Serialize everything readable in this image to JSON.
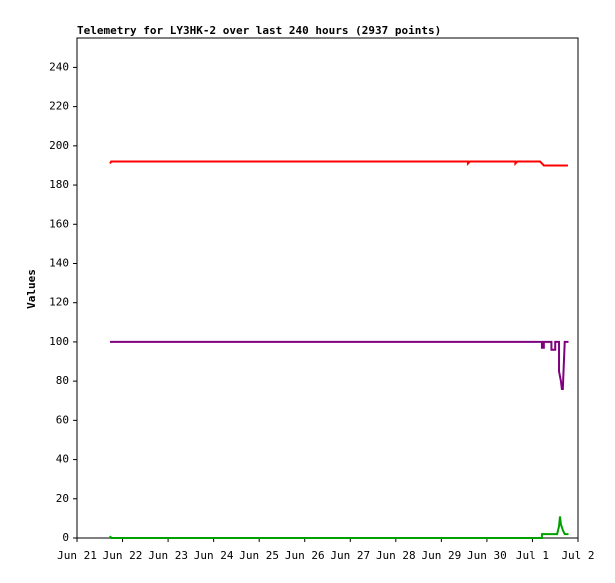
{
  "chart_data": {
    "type": "line",
    "title": "Telemetry for LY3HK-2 over last 240 hours (2937 points)",
    "ylabel": "Values",
    "xlim": [
      0,
      264
    ],
    "xticks": [
      {
        "value": 0,
        "label": "Jun 21"
      },
      {
        "value": 24,
        "label": "Jun 22"
      },
      {
        "value": 48,
        "label": "Jun 23"
      },
      {
        "value": 72,
        "label": "Jun 24"
      },
      {
        "value": 96,
        "label": "Jun 25"
      },
      {
        "value": 120,
        "label": "Jun 26"
      },
      {
        "value": 144,
        "label": "Jun 27"
      },
      {
        "value": 168,
        "label": "Jun 28"
      },
      {
        "value": 192,
        "label": "Jun 29"
      },
      {
        "value": 216,
        "label": "Jun 30"
      },
      {
        "value": 240,
        "label": "Jul 1"
      },
      {
        "value": 264,
        "label": "Jul 2"
      }
    ],
    "ylim": [
      0,
      255
    ],
    "yticks": [
      0,
      20,
      40,
      60,
      80,
      100,
      120,
      140,
      160,
      180,
      200,
      220,
      240
    ],
    "grid": false,
    "series": [
      {
        "color": "#ff0000",
        "x": [
          17.4,
          18,
          206,
          206,
          207,
          231,
          231,
          232,
          244,
          245,
          246,
          258.7
        ],
        "values": [
          191,
          192,
          192,
          191,
          192,
          192,
          191,
          192,
          192,
          191,
          190,
          190
        ]
      },
      {
        "color": "#800080",
        "x": [
          17.4,
          245,
          245,
          246,
          246,
          250,
          250,
          252,
          252,
          254,
          254,
          255,
          255.5,
          256,
          257,
          259
        ],
        "values": [
          100,
          100,
          97,
          97,
          100,
          100,
          96,
          96,
          100,
          100,
          85,
          80,
          76,
          76,
          100,
          100
        ]
      },
      {
        "color": "#00a000",
        "x": [
          17.4,
          18,
          245,
          245,
          253,
          254,
          254.5,
          255,
          256,
          257,
          259
        ],
        "values": [
          1,
          0,
          0,
          2,
          2,
          6,
          11,
          7,
          4,
          2,
          2
        ]
      }
    ]
  }
}
